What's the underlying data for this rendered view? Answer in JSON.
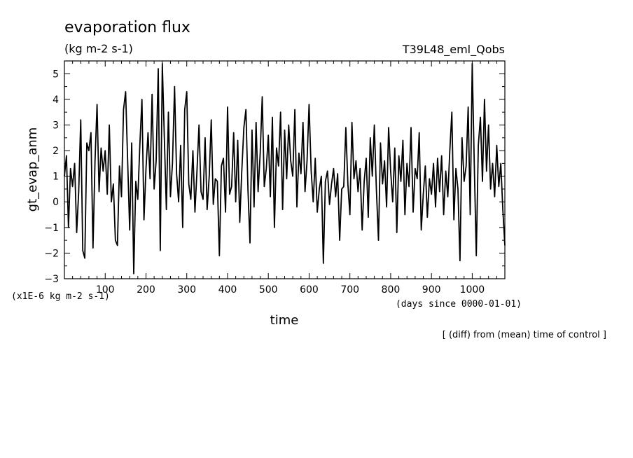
{
  "chart_data": {
    "type": "line",
    "title": "evaporation flux",
    "units": "(kg m-2 s-1)",
    "experiment": "T39L48_eml_Qobs",
    "ylabel": "gt_evap_anm",
    "xlabel": "time",
    "y_multiplier": "(x1E-6 kg m-2 s-1)",
    "x_units": "(days since 0000-01-01)",
    "note": "[ (diff) from (mean) time of control ]",
    "xlim": [
      0,
      1080
    ],
    "ylim": [
      -3,
      5.5
    ],
    "xticks": [
      100,
      200,
      300,
      400,
      500,
      600,
      700,
      800,
      900,
      1000
    ],
    "yticks": [
      -3,
      -2,
      -1,
      0,
      1,
      2,
      3,
      4,
      5
    ],
    "grid": false,
    "line_color": "#000000",
    "keypoints": [
      [
        0,
        1.0
      ],
      [
        5,
        1.8
      ],
      [
        10,
        -1.0
      ],
      [
        15,
        1.3
      ],
      [
        20,
        0.6
      ],
      [
        25,
        1.5
      ],
      [
        30,
        -1.2
      ],
      [
        35,
        0.4
      ],
      [
        40,
        3.2
      ],
      [
        45,
        -1.9
      ],
      [
        50,
        -2.2
      ],
      [
        55,
        2.3
      ],
      [
        60,
        2.0
      ],
      [
        65,
        2.7
      ],
      [
        70,
        -1.8
      ],
      [
        75,
        1.6
      ],
      [
        80,
        3.8
      ],
      [
        85,
        0.4
      ],
      [
        90,
        2.1
      ],
      [
        95,
        1.2
      ],
      [
        100,
        2.0
      ],
      [
        105,
        0.3
      ],
      [
        110,
        3.0
      ],
      [
        115,
        0.0
      ],
      [
        120,
        0.7
      ],
      [
        125,
        -1.5
      ],
      [
        130,
        -1.7
      ],
      [
        135,
        1.4
      ],
      [
        140,
        0.2
      ],
      [
        145,
        3.6
      ],
      [
        150,
        4.3
      ],
      [
        155,
        1.6
      ],
      [
        160,
        -1.1
      ],
      [
        165,
        2.3
      ],
      [
        170,
        -2.8
      ],
      [
        175,
        0.8
      ],
      [
        180,
        0.1
      ],
      [
        185,
        2.2
      ],
      [
        190,
        4.0
      ],
      [
        195,
        -0.7
      ],
      [
        200,
        1.3
      ],
      [
        205,
        2.7
      ],
      [
        210,
        0.9
      ],
      [
        215,
        4.2
      ],
      [
        220,
        0.5
      ],
      [
        225,
        1.6
      ],
      [
        230,
        5.2
      ],
      [
        235,
        -1.9
      ],
      [
        240,
        5.4
      ],
      [
        245,
        2.5
      ],
      [
        250,
        -0.3
      ],
      [
        255,
        3.5
      ],
      [
        260,
        0.2
      ],
      [
        265,
        1.5
      ],
      [
        270,
        4.5
      ],
      [
        275,
        1.1
      ],
      [
        280,
        0.0
      ],
      [
        285,
        2.2
      ],
      [
        290,
        -1.0
      ],
      [
        295,
        3.6
      ],
      [
        300,
        4.3
      ],
      [
        305,
        0.7
      ],
      [
        310,
        0.1
      ],
      [
        315,
        2.0
      ],
      [
        320,
        -0.4
      ],
      [
        325,
        1.2
      ],
      [
        330,
        3.0
      ],
      [
        335,
        0.4
      ],
      [
        340,
        0.1
      ],
      [
        345,
        2.5
      ],
      [
        350,
        -0.3
      ],
      [
        355,
        1.0
      ],
      [
        360,
        3.2
      ],
      [
        365,
        -0.1
      ],
      [
        370,
        0.9
      ],
      [
        375,
        0.8
      ],
      [
        380,
        -2.1
      ],
      [
        385,
        1.4
      ],
      [
        390,
        1.7
      ],
      [
        395,
        -0.4
      ],
      [
        400,
        3.7
      ],
      [
        405,
        0.3
      ],
      [
        410,
        0.6
      ],
      [
        415,
        2.7
      ],
      [
        420,
        0.0
      ],
      [
        425,
        2.4
      ],
      [
        430,
        -0.8
      ],
      [
        435,
        1.2
      ],
      [
        440,
        2.9
      ],
      [
        445,
        3.6
      ],
      [
        450,
        0.5
      ],
      [
        455,
        -1.6
      ],
      [
        460,
        2.8
      ],
      [
        465,
        -0.2
      ],
      [
        470,
        3.1
      ],
      [
        475,
        0.4
      ],
      [
        480,
        1.9
      ],
      [
        485,
        4.1
      ],
      [
        490,
        0.6
      ],
      [
        495,
        1.3
      ],
      [
        500,
        2.6
      ],
      [
        505,
        0.2
      ],
      [
        510,
        3.3
      ],
      [
        515,
        -1.0
      ],
      [
        520,
        2.1
      ],
      [
        525,
        1.4
      ],
      [
        530,
        3.5
      ],
      [
        535,
        -0.3
      ],
      [
        540,
        2.8
      ],
      [
        545,
        0.9
      ],
      [
        550,
        3.0
      ],
      [
        555,
        1.6
      ],
      [
        560,
        1.0
      ],
      [
        565,
        3.6
      ],
      [
        570,
        -0.2
      ],
      [
        575,
        1.9
      ],
      [
        580,
        1.1
      ],
      [
        585,
        3.1
      ],
      [
        590,
        0.4
      ],
      [
        595,
        1.6
      ],
      [
        600,
        3.8
      ],
      [
        605,
        1.2
      ],
      [
        610,
        0.0
      ],
      [
        615,
        1.7
      ],
      [
        620,
        -0.4
      ],
      [
        625,
        0.5
      ],
      [
        630,
        1.0
      ],
      [
        635,
        -2.4
      ],
      [
        640,
        0.8
      ],
      [
        645,
        1.2
      ],
      [
        650,
        -0.1
      ],
      [
        655,
        0.7
      ],
      [
        660,
        1.3
      ],
      [
        665,
        0.2
      ],
      [
        670,
        1.1
      ],
      [
        675,
        -1.5
      ],
      [
        680,
        0.5
      ],
      [
        685,
        0.6
      ],
      [
        690,
        2.9
      ],
      [
        695,
        0.7
      ],
      [
        700,
        -0.5
      ],
      [
        705,
        3.1
      ],
      [
        710,
        0.9
      ],
      [
        715,
        1.6
      ],
      [
        720,
        0.4
      ],
      [
        725,
        1.3
      ],
      [
        730,
        -1.1
      ],
      [
        735,
        0.8
      ],
      [
        740,
        1.7
      ],
      [
        745,
        -0.6
      ],
      [
        750,
        2.5
      ],
      [
        755,
        1.0
      ],
      [
        760,
        3.0
      ],
      [
        765,
        0.5
      ],
      [
        770,
        -1.5
      ],
      [
        775,
        2.3
      ],
      [
        780,
        0.7
      ],
      [
        785,
        1.6
      ],
      [
        790,
        -0.2
      ],
      [
        795,
        2.9
      ],
      [
        800,
        1.2
      ],
      [
        805,
        0.0
      ],
      [
        810,
        2.1
      ],
      [
        815,
        -1.2
      ],
      [
        820,
        1.8
      ],
      [
        825,
        0.8
      ],
      [
        830,
        2.4
      ],
      [
        835,
        -0.5
      ],
      [
        840,
        1.5
      ],
      [
        845,
        0.6
      ],
      [
        850,
        2.9
      ],
      [
        855,
        -0.4
      ],
      [
        860,
        1.3
      ],
      [
        865,
        0.9
      ],
      [
        870,
        2.7
      ],
      [
        875,
        -1.1
      ],
      [
        880,
        0.3
      ],
      [
        885,
        1.4
      ],
      [
        890,
        -0.6
      ],
      [
        895,
        0.9
      ],
      [
        900,
        0.3
      ],
      [
        905,
        1.5
      ],
      [
        910,
        -0.2
      ],
      [
        915,
        1.7
      ],
      [
        920,
        0.4
      ],
      [
        925,
        1.8
      ],
      [
        930,
        -0.5
      ],
      [
        935,
        1.2
      ],
      [
        940,
        0.2
      ],
      [
        945,
        2.0
      ],
      [
        950,
        3.5
      ],
      [
        955,
        -0.7
      ],
      [
        960,
        1.3
      ],
      [
        965,
        0.5
      ],
      [
        970,
        -2.3
      ],
      [
        975,
        2.5
      ],
      [
        980,
        0.8
      ],
      [
        985,
        1.4
      ],
      [
        990,
        3.7
      ],
      [
        995,
        -0.5
      ],
      [
        1000,
        5.4
      ],
      [
        1005,
        1.5
      ],
      [
        1010,
        -2.1
      ],
      [
        1015,
        2.2
      ],
      [
        1020,
        3.3
      ],
      [
        1025,
        0.8
      ],
      [
        1030,
        4.0
      ],
      [
        1035,
        1.2
      ],
      [
        1040,
        3.0
      ],
      [
        1045,
        0.5
      ],
      [
        1050,
        1.5
      ],
      [
        1055,
        0.2
      ],
      [
        1060,
        2.2
      ],
      [
        1065,
        0.6
      ],
      [
        1070,
        1.5
      ],
      [
        1075,
        -0.3
      ],
      [
        1080,
        -1.7
      ]
    ]
  }
}
